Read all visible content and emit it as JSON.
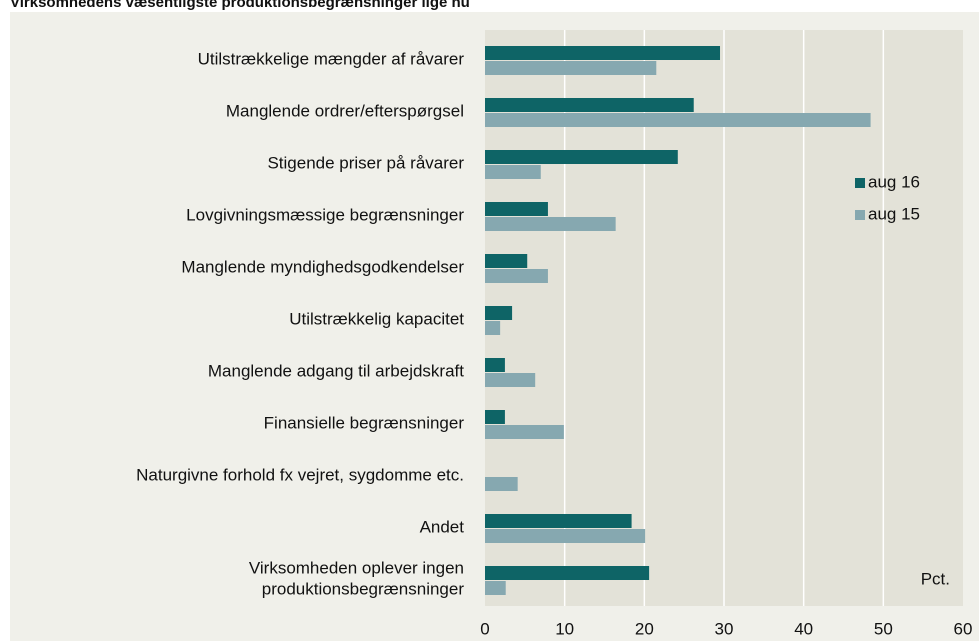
{
  "chart_data": {
    "type": "hbar",
    "title": "Virksomhedens væsentligste produktionsbegrænsninger lige nu",
    "categories": [
      "Utilstrækkelige mængder af råvarer",
      "Manglende ordrer/efterspørgsel",
      "Stigende priser på råvarer",
      "Lovgivningsmæssige begrænsninger",
      "Manglende myndighedsgodkendelser",
      "Utilstrækkelig kapacitet",
      "Manglende adgang til arbejdskraft",
      "Finansielle begrænsninger",
      "Naturgivne forhold fx vejret, sygdomme etc.",
      "Andet",
      "Virksomheden oplever ingen\nproduktionsbegrænsninger"
    ],
    "series": [
      {
        "name": "aug 16",
        "color": "#0e6466",
        "values": [
          29.5,
          26.2,
          24.2,
          7.9,
          5.3,
          3.4,
          2.5,
          2.5,
          null,
          18.4,
          20.6
        ]
      },
      {
        "name": "aug 15",
        "color": "#86a8b0",
        "values": [
          21.5,
          48.4,
          7.0,
          16.4,
          7.9,
          1.9,
          6.3,
          9.9,
          4.1,
          20.1,
          2.6
        ]
      }
    ],
    "xlim": [
      0,
      60
    ],
    "xticks": [
      0,
      10,
      20,
      30,
      40,
      50,
      60
    ],
    "unit_label": "Pct.",
    "grid": true,
    "legend": "right"
  }
}
